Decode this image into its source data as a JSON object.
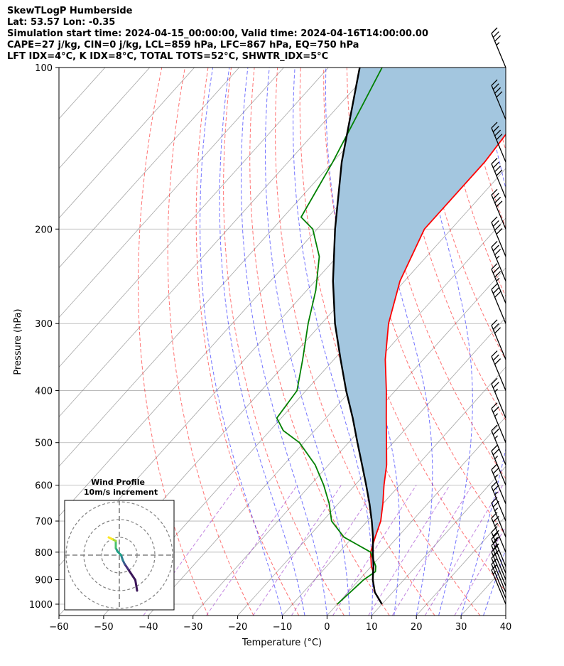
{
  "header": {
    "line1": "SkewTLogP Humberside",
    "line2": "Lat: 53.57   Lon: -0.35",
    "line3": "Simulation start time: 2024-04-15_00:00:00, Valid time: 2024-04-16T14:00:00.00",
    "line4": "CAPE=27 j/kg, CIN=0 j/kg, LCL=859 hPa, LFC=867 hPa, EQ=750 hPa",
    "line5": "LFT IDX=4°C, K IDX=8°C, TOTAL TOTS=52°C, SHWTR_IDX=5°C"
  },
  "colors": {
    "temperature": "#ff0000",
    "dewpoint": "#008000",
    "parcel": "#000000",
    "cape_fill": "#a3c6df",
    "dry_adiabat": "#ff0000",
    "moist_adiabat": "#0000ff",
    "mixing_ratio": "#9932cc",
    "isotherm": "#808080"
  },
  "chart_data": {
    "type": "line",
    "xlabel": "Temperature (°C)",
    "ylabel": "Pressure (hPa)",
    "xlim": [
      -60,
      40
    ],
    "ylim": [
      1050,
      100
    ],
    "y_scale": "log",
    "x_ticks": [
      "−60",
      "−50",
      "−40",
      "−30",
      "−20",
      "−10",
      "0",
      "10",
      "20",
      "30",
      "40"
    ],
    "y_ticks": [
      "1000",
      "900",
      "800",
      "700",
      "600",
      "500",
      "400",
      "300",
      "200",
      "100"
    ],
    "grid": true,
    "series": [
      {
        "key": "temperature",
        "points": [
          [
            1000,
            10
          ],
          [
            950,
            6
          ],
          [
            900,
            3
          ],
          [
            870,
            1.5
          ],
          [
            850,
            0
          ],
          [
            800,
            -3
          ],
          [
            750,
            -5
          ],
          [
            700,
            -7
          ],
          [
            650,
            -10
          ],
          [
            600,
            -13.5
          ],
          [
            550,
            -17
          ],
          [
            500,
            -21.5
          ],
          [
            450,
            -26.5
          ],
          [
            400,
            -32
          ],
          [
            350,
            -38.5
          ],
          [
            300,
            -45
          ],
          [
            250,
            -51
          ],
          [
            200,
            -56
          ],
          [
            180,
            -56
          ],
          [
            150,
            -56
          ],
          [
            130,
            -57
          ],
          [
            110,
            -57
          ],
          [
            100,
            -57
          ]
        ]
      },
      {
        "key": "dewpoint",
        "points": [
          [
            1000,
            0
          ],
          [
            950,
            0.5
          ],
          [
            900,
            1
          ],
          [
            870,
            2
          ],
          [
            850,
            1
          ],
          [
            800,
            -3
          ],
          [
            750,
            -12
          ],
          [
            700,
            -18
          ],
          [
            650,
            -22
          ],
          [
            600,
            -27
          ],
          [
            550,
            -33
          ],
          [
            500,
            -41
          ],
          [
            475,
            -47
          ],
          [
            450,
            -51
          ],
          [
            400,
            -52
          ],
          [
            350,
            -57
          ],
          [
            300,
            -63
          ],
          [
            260,
            -68
          ],
          [
            225,
            -74
          ],
          [
            200,
            -81
          ],
          [
            190,
            -86
          ],
          [
            150,
            -90
          ],
          [
            100,
            -98
          ]
        ]
      },
      {
        "key": "parcel",
        "points": [
          [
            1000,
            10
          ],
          [
            950,
            6
          ],
          [
            900,
            3
          ],
          [
            870,
            1.5
          ],
          [
            850,
            0.5
          ],
          [
            800,
            -2.5
          ],
          [
            750,
            -5.5
          ],
          [
            700,
            -9
          ],
          [
            650,
            -13
          ],
          [
            600,
            -17.5
          ],
          [
            550,
            -22.5
          ],
          [
            500,
            -28
          ],
          [
            450,
            -34
          ],
          [
            400,
            -41
          ],
          [
            350,
            -48.5
          ],
          [
            300,
            -57
          ],
          [
            250,
            -66
          ],
          [
            200,
            -76
          ],
          [
            150,
            -88
          ],
          [
            100,
            -103
          ]
        ]
      }
    ],
    "cape_shading": "between parcel and temperature, 850 to 100 hPa",
    "wind_barbs": {
      "pressures": [
        1000,
        975,
        950,
        925,
        900,
        875,
        850,
        800,
        750,
        700,
        650,
        600,
        550,
        500,
        450,
        400,
        350,
        300,
        275,
        250,
        225,
        200,
        175,
        150,
        125,
        100
      ],
      "speed_kt": [
        15,
        15,
        15,
        20,
        20,
        25,
        25,
        25,
        25,
        25,
        25,
        25,
        25,
        25,
        25,
        30,
        30,
        30,
        35,
        35,
        40,
        40,
        40,
        40,
        40,
        35
      ]
    },
    "hodograph": {
      "title": "Wind Profile",
      "subtitle": "10m/s increment",
      "rings_ms": [
        10,
        20,
        30
      ],
      "points_uv": [
        [
          10,
          -20
        ],
        [
          9,
          -14
        ],
        [
          5,
          -8
        ],
        [
          3,
          -5
        ],
        [
          2,
          -3
        ],
        [
          1,
          0
        ],
        [
          -1,
          2
        ],
        [
          -2,
          4
        ],
        [
          -2,
          8
        ],
        [
          -4,
          9
        ],
        [
          -6,
          10
        ]
      ]
    }
  }
}
